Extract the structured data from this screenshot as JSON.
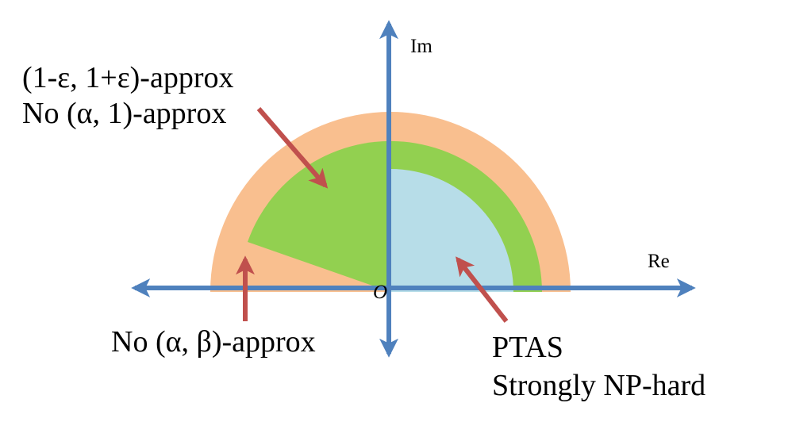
{
  "axes": {
    "im_label": "Im",
    "re_label": "Re",
    "origin_label": "O"
  },
  "regions": {
    "outer": {
      "color": "#f9bf8f"
    },
    "middle": {
      "color": "#92d050"
    },
    "inner": {
      "color": "#b7dde8"
    }
  },
  "colors": {
    "axis": "#4f81bd",
    "pointer": "#c0504d",
    "text": "#000000"
  },
  "annotations": {
    "green_region": {
      "line1": "(1-ε, 1+ε)-approx",
      "line2": "No (α, 1)-approx"
    },
    "orange_region": {
      "line1": "No (α, β)-approx"
    },
    "blue_region": {
      "line1": "PTAS",
      "line2": "Strongly NP-hard"
    }
  }
}
